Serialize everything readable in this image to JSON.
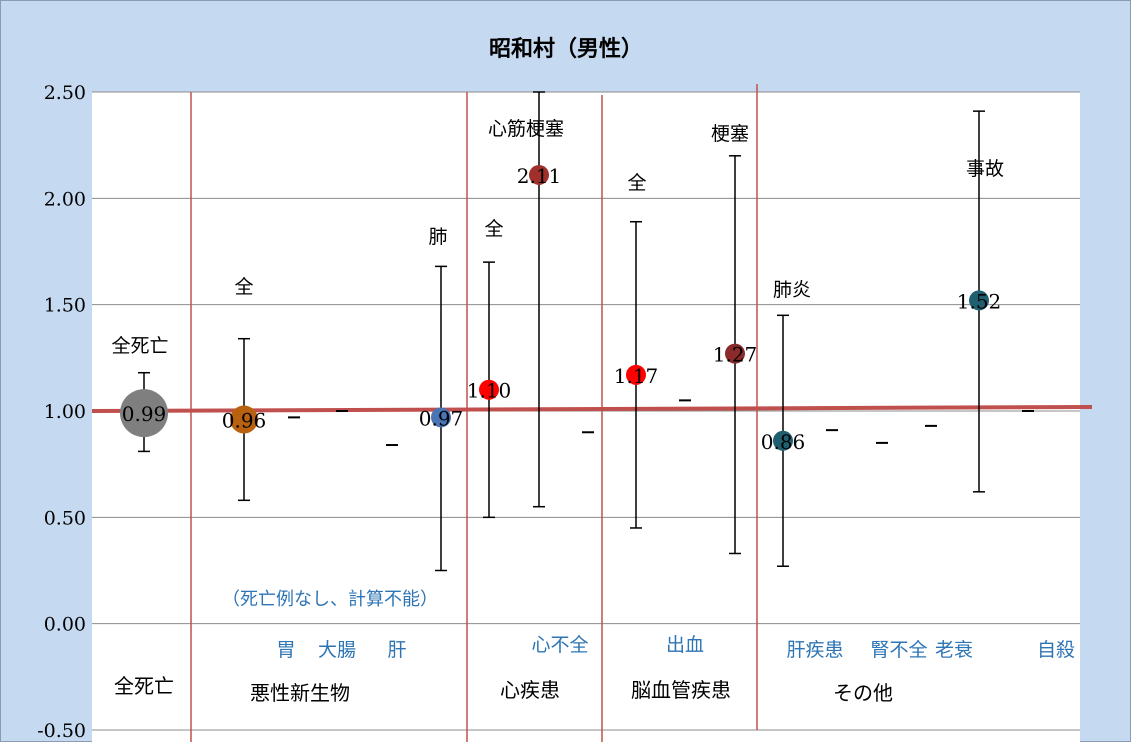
{
  "chart_data": {
    "type": "scatter",
    "title": "昭和村（男性）",
    "xlabel": "",
    "ylabel": "",
    "ylim": [
      -0.5,
      2.5
    ],
    "yticks": [
      "2.50",
      "2.00",
      "1.50",
      "1.00",
      "0.50",
      "0.00",
      "-0.50"
    ],
    "grid": true,
    "legend": "none",
    "reference_line": 1.0,
    "note": "（死亡例なし、計算不能）",
    "groups": [
      "全死亡",
      "悪性新生物",
      "心疾患",
      "脳血管疾患",
      "その他"
    ],
    "categories": [
      "全死亡",
      "全",
      "胃",
      "大腸",
      "肝",
      "肺",
      "全",
      "心筋梗塞",
      "心不全",
      "全",
      "出血",
      "梗塞",
      "肺炎",
      "肝疾患",
      "腎不全",
      "老衰",
      "事故",
      "自殺"
    ],
    "points": [
      {
        "label": "全死亡",
        "value": 0.99,
        "value_label": "0.99",
        "ci_low": 0.81,
        "ci_high": 1.18,
        "color": "#7f7f7f"
      },
      {
        "label": "全",
        "value": 0.96,
        "value_label": "0.96",
        "ci_low": 0.58,
        "ci_high": 1.34,
        "color": "#b8620f"
      },
      {
        "label": "胃",
        "value": 0.97
      },
      {
        "label": "大腸",
        "value": 1.0
      },
      {
        "label": "肝",
        "value": 0.84
      },
      {
        "label": "肺",
        "value": 0.97,
        "value_label": "0.97",
        "ci_low": 0.25,
        "ci_high": 1.68,
        "color": "#4a74b4"
      },
      {
        "label": "全",
        "value": 1.1,
        "value_label": "1.10",
        "ci_low": 0.5,
        "ci_high": 1.7,
        "color": "#ff0000"
      },
      {
        "label": "心筋梗塞",
        "value": 2.11,
        "value_label": "2.11",
        "ci_low": 0.55,
        "ci_high": 2.5,
        "color": "#a0302c"
      },
      {
        "label": "心不全",
        "value": 0.9
      },
      {
        "label": "全",
        "value": 1.17,
        "value_label": "1.17",
        "ci_low": 0.45,
        "ci_high": 1.89,
        "color": "#ff0000"
      },
      {
        "label": "出血",
        "value": 1.05
      },
      {
        "label": "梗塞",
        "value": 1.27,
        "value_label": "1.27",
        "ci_low": 0.33,
        "ci_high": 2.2,
        "color": "#8b2a2a"
      },
      {
        "label": "肺炎",
        "value": 0.86,
        "value_label": "0.86",
        "ci_low": 0.27,
        "ci_high": 1.45,
        "color": "#1f5f70"
      },
      {
        "label": "肝疾患",
        "value": 0.91
      },
      {
        "label": "腎不全",
        "value": 0.85
      },
      {
        "label": "老衰",
        "value": 0.93
      },
      {
        "label": "事故",
        "value": 1.52,
        "value_label": "1.52",
        "ci_low": 0.62,
        "ci_high": 2.41,
        "color": "#1f5f70"
      },
      {
        "label": "自殺",
        "value": 1.0
      }
    ]
  }
}
